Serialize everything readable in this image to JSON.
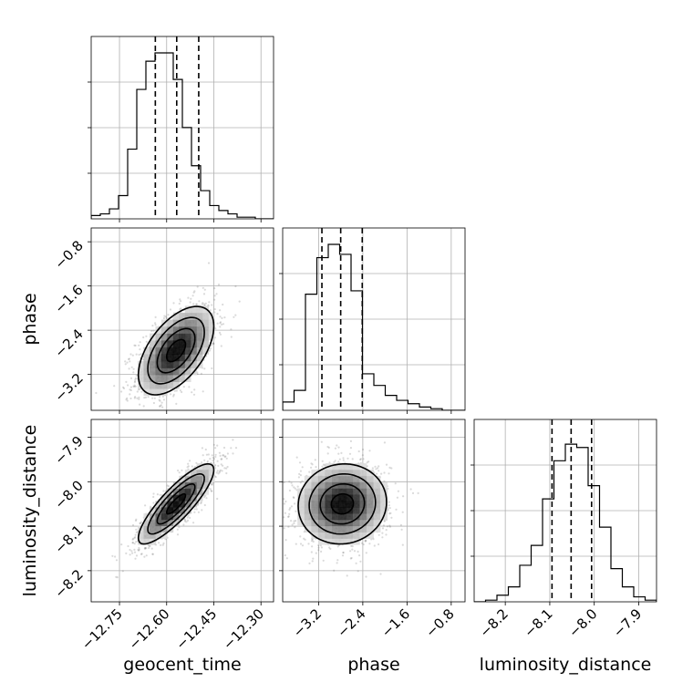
{
  "chart_data": {
    "type": "corner",
    "parameters": [
      {
        "name": "geocent_time",
        "xlabel": "geocent_time",
        "ticks": [
          -12.75,
          -12.6,
          -12.45,
          -12.3
        ],
        "tick_labels": [
          "−12.75",
          "−12.60",
          "−12.45",
          "−12.30"
        ],
        "range": [
          -12.84,
          -12.26
        ],
        "mean": -12.57,
        "sd": 0.06,
        "quantiles": [
          -12.636,
          -12.568,
          -12.498
        ],
        "hist_bins": [
          0.02,
          0.03,
          0.06,
          0.14,
          0.42,
          0.78,
          0.95,
          1.0,
          1.0,
          0.84,
          0.55,
          0.32,
          0.17,
          0.08,
          0.05,
          0.03,
          0.01,
          0.01,
          0.0,
          0.0
        ]
      },
      {
        "name": "phase",
        "xlabel": "phase",
        "ylabel": "phase",
        "ticks": [
          -3.2,
          -2.4,
          -1.6,
          -0.8
        ],
        "tick_labels": [
          "−3.2",
          "−2.4",
          "−1.6",
          "−0.8"
        ],
        "range": [
          -3.85,
          -0.55
        ],
        "mean": -2.77,
        "sd": 0.4,
        "quantiles": [
          -3.14,
          -2.8,
          -2.41
        ],
        "hist_bins": [
          0.05,
          0.12,
          0.7,
          0.92,
          1.0,
          0.94,
          0.72,
          0.22,
          0.15,
          0.09,
          0.06,
          0.04,
          0.02,
          0.01,
          0.0,
          0.0
        ]
      },
      {
        "name": "luminosity_distance",
        "xlabel": "luminosity_distance",
        "ylabel": "luminosity_distance",
        "ticks": [
          -8.2,
          -8.1,
          -8.0,
          -7.9
        ],
        "tick_labels": [
          "−8.2",
          "−8.1",
          "−8.0",
          "−7.9"
        ],
        "range": [
          -8.27,
          -7.86
        ],
        "mean": -8.05,
        "sd": 0.045,
        "quantiles": [
          -8.095,
          -8.052,
          -8.006
        ],
        "hist_bins": [
          0.0,
          0.01,
          0.04,
          0.09,
          0.22,
          0.34,
          0.62,
          0.85,
          0.95,
          0.93,
          0.7,
          0.45,
          0.2,
          0.09,
          0.03,
          0.01
        ]
      }
    ],
    "correlations": {
      "geocent_time|phase": 0.55,
      "geocent_time|luminosity_distance": 0.85,
      "phase|luminosity_distance": 0.05
    },
    "grid": true,
    "quantile_lines": "dashed"
  }
}
